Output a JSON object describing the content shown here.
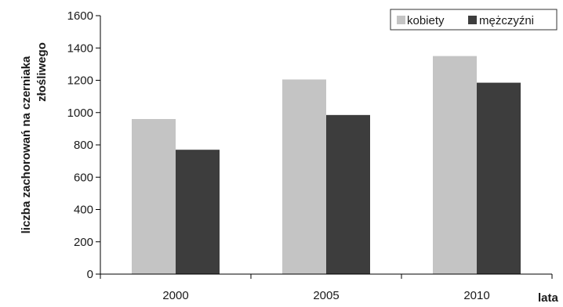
{
  "chart_data": {
    "type": "bar",
    "categories": [
      "2000",
      "2005",
      "2010"
    ],
    "series": [
      {
        "name": "kobiety",
        "values": [
          960,
          1205,
          1350
        ],
        "color": "#c4c4c4"
      },
      {
        "name": "mężczyźni",
        "values": [
          770,
          985,
          1185
        ],
        "color": "#3d3d3d"
      }
    ],
    "ylabel_lines": [
      "liczba zachorowań na czerniaka",
      "złośliwego"
    ],
    "xlabel": "lata",
    "ylim": [
      0,
      1600
    ],
    "yticks": [
      "0",
      "200",
      "400",
      "600",
      "800",
      "1000",
      "1200",
      "1400",
      "1600"
    ],
    "grid": false,
    "legend_position": "top-right"
  }
}
